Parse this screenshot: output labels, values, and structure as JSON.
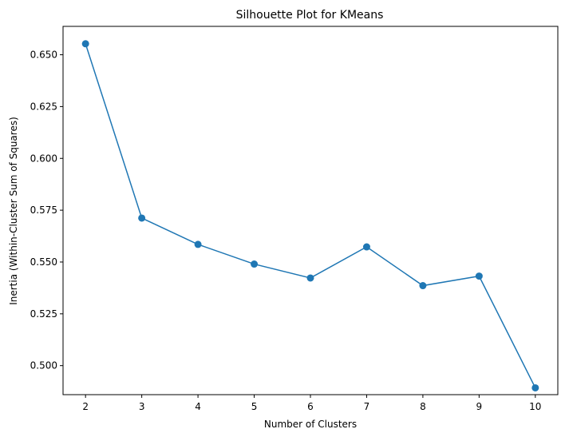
{
  "chart_data": {
    "type": "line",
    "title": "Silhouette Plot for KMeans",
    "xlabel": "Number of Clusters",
    "ylabel": "Inertia (Within-Cluster Sum of Squares)",
    "x": [
      2,
      3,
      4,
      5,
      6,
      7,
      8,
      9,
      10
    ],
    "series": [
      {
        "values": [
          0.6553,
          0.5712,
          0.5585,
          0.549,
          0.5423,
          0.5573,
          0.5386,
          0.5432,
          0.4893
        ],
        "color": "#1f77b4",
        "marker": "circle"
      }
    ],
    "xlim": [
      1.6,
      10.4
    ],
    "ylim": [
      0.486,
      0.6637
    ],
    "xticks": [
      "2",
      "3",
      "4",
      "5",
      "6",
      "7",
      "8",
      "9",
      "10"
    ],
    "yticks": [
      "0.500",
      "0.525",
      "0.550",
      "0.575",
      "0.600",
      "0.625",
      "0.650"
    ],
    "grid": false
  }
}
